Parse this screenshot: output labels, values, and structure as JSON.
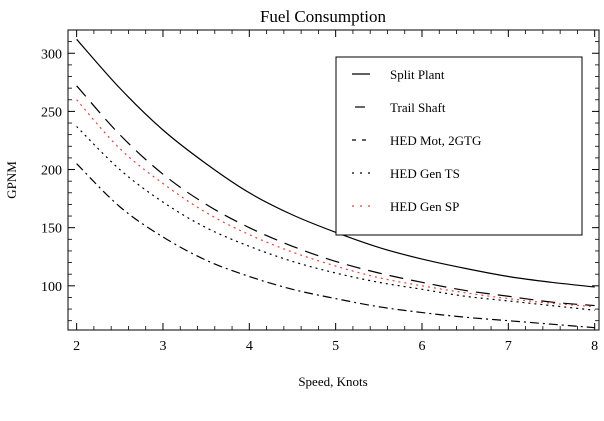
{
  "chart_data": {
    "type": "line",
    "title": "Fuel Consumption",
    "xlabel": "Speed, Knots",
    "ylabel": "GPNM",
    "xlim": [
      1.9,
      8.05
    ],
    "ylim": [
      62,
      320
    ],
    "xticks": [
      2,
      3,
      4,
      5,
      6,
      7,
      8
    ],
    "yticks": [
      100,
      150,
      200,
      250,
      300
    ],
    "legend_position": "top-right",
    "grid": false,
    "x": [
      2,
      2.5,
      3,
      3.5,
      4,
      4.5,
      5,
      5.5,
      6,
      6.5,
      7,
      7.5,
      8
    ],
    "series": [
      {
        "name": "Split Plant",
        "color": "#000000",
        "dash": "solid",
        "values": [
          312,
          270,
          234,
          205,
          180,
          161,
          146,
          133,
          123,
          115,
          108,
          103,
          99
        ]
      },
      {
        "name": "Trail Shaft",
        "color": "#000000",
        "dash": "longdash",
        "values": [
          272,
          230,
          196,
          170,
          150,
          134,
          121,
          111,
          103,
          96,
          91,
          86,
          83
        ]
      },
      {
        "name": "HED Mot, 2GTG",
        "color": "#000000",
        "dash": "dashed",
        "values": [
          205,
          168,
          142,
          122,
          108,
          97,
          89,
          82,
          77,
          73,
          70,
          67,
          64
        ]
      },
      {
        "name": "HED Gen TS",
        "color": "#000000",
        "dash": "dotted",
        "values": [
          237,
          200,
          172,
          150,
          134,
          121,
          111,
          103,
          97,
          91,
          87,
          83,
          79
        ]
      },
      {
        "name": "HED Gen SP",
        "color": "#e8403a",
        "dash": "dotted",
        "values": [
          260,
          218,
          188,
          163,
          144,
          129,
          117,
          107,
          100,
          94,
          89,
          85,
          82
        ]
      }
    ]
  }
}
